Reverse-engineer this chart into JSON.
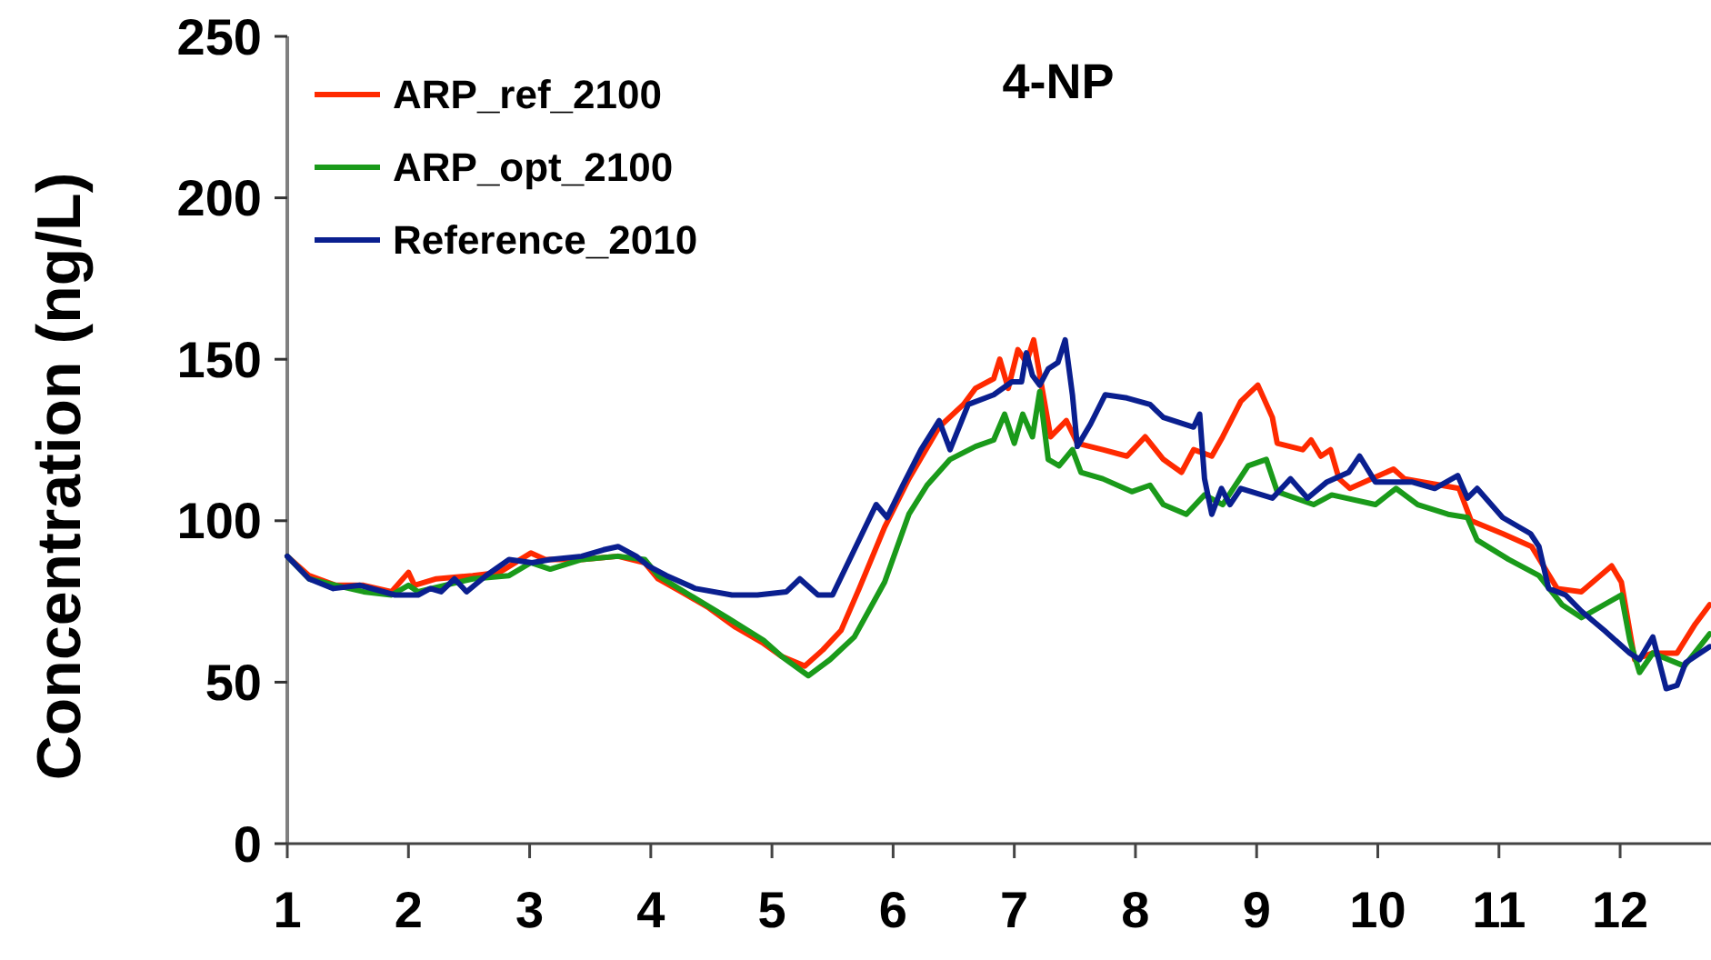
{
  "chart_data": {
    "type": "line",
    "title": "4-NP",
    "ylabel": "Concentration (ng/L)",
    "xlim": [
      1,
      12.75
    ],
    "ylim": [
      0,
      250
    ],
    "yticks": [
      0,
      50,
      100,
      150,
      200,
      250
    ],
    "xticks": [
      1,
      2,
      3,
      4,
      5,
      6,
      7,
      8,
      9,
      10,
      11,
      12
    ],
    "grid": false,
    "legend": "top left",
    "marker": "none",
    "line_style": "solid",
    "series": [
      {
        "name": "ARP_ref_2100",
        "color": "#ff2a00",
        "x": [
          1,
          1.18,
          1.4,
          1.63,
          1.86,
          2.0,
          2.05,
          2.23,
          2.53,
          2.75,
          3.01,
          3.13,
          3.43,
          3.73,
          3.95,
          4.06,
          4.25,
          4.48,
          4.7,
          4.93,
          5.08,
          5.27,
          5.42,
          5.57,
          5.72,
          5.93,
          6.13,
          6.38,
          6.58,
          6.68,
          6.83,
          6.88,
          6.95,
          7.03,
          7.1,
          7.16,
          7.22,
          7.3,
          7.43,
          7.52,
          7.73,
          7.93,
          8.08,
          8.23,
          8.38,
          8.48,
          8.63,
          8.72,
          8.87,
          9.01,
          9.13,
          9.17,
          9.38,
          9.45,
          9.53,
          9.61,
          9.68,
          9.77,
          10.13,
          10.22,
          10.67,
          10.77,
          11.03,
          11.27,
          11.48,
          11.68,
          11.93,
          12.01,
          12.12,
          12.27,
          12.47,
          12.62,
          12.74
        ],
        "values": [
          89,
          83,
          80,
          80,
          78,
          84,
          80,
          82,
          83,
          84,
          90,
          88,
          88,
          89,
          87,
          82,
          78,
          73,
          67,
          62,
          58,
          55,
          60,
          66,
          79,
          98,
          113,
          129,
          136,
          141,
          144,
          150,
          141,
          153,
          149,
          156,
          143,
          126,
          131,
          124,
          122,
          120,
          126,
          119,
          115,
          122,
          120,
          126,
          137,
          142,
          132,
          124,
          122,
          125,
          120,
          122,
          113,
          110,
          116,
          113,
          110,
          100,
          96,
          92,
          79,
          78,
          86,
          81,
          57,
          59,
          59,
          68,
          74
        ]
      },
      {
        "name": "ARP_opt_2100",
        "color": "#1a9a1a",
        "x": [
          1,
          1.18,
          1.4,
          1.63,
          1.86,
          2.0,
          2.08,
          2.3,
          2.53,
          2.83,
          3.01,
          3.17,
          3.43,
          3.73,
          3.95,
          4.06,
          4.32,
          4.63,
          4.93,
          5.08,
          5.3,
          5.48,
          5.68,
          5.93,
          6.13,
          6.28,
          6.47,
          6.68,
          6.83,
          6.92,
          7.0,
          7.07,
          7.15,
          7.21,
          7.28,
          7.37,
          7.48,
          7.55,
          7.73,
          7.97,
          8.12,
          8.23,
          8.42,
          8.57,
          8.72,
          8.93,
          9.08,
          9.17,
          9.47,
          9.62,
          9.98,
          10.15,
          10.33,
          10.58,
          10.74,
          10.82,
          11.08,
          11.33,
          11.52,
          11.68,
          12.01,
          12.08,
          12.16,
          12.27,
          12.53,
          12.74
        ],
        "values": [
          89,
          82,
          80,
          78,
          77,
          80,
          78,
          80,
          82,
          83,
          87,
          85,
          88,
          89,
          88,
          83,
          77,
          70,
          63,
          58,
          52,
          57,
          64,
          81,
          102,
          111,
          119,
          123,
          125,
          133,
          124,
          133,
          126,
          140,
          119,
          117,
          122,
          115,
          113,
          109,
          111,
          105,
          102,
          108,
          105,
          117,
          119,
          109,
          105,
          108,
          105,
          110,
          105,
          102,
          101,
          94,
          88,
          83,
          74,
          70,
          77,
          63,
          53,
          59,
          55,
          65
        ]
      },
      {
        "name": "Reference_2010",
        "color": "#0a1f8f",
        "x": [
          1,
          1.18,
          1.38,
          1.6,
          1.89,
          2.08,
          2.18,
          2.27,
          2.38,
          2.48,
          2.64,
          2.83,
          3.02,
          3.17,
          3.43,
          3.61,
          3.73,
          3.88,
          3.98,
          4.13,
          4.37,
          4.67,
          4.88,
          5.12,
          5.23,
          5.38,
          5.5,
          5.68,
          5.86,
          5.95,
          6.08,
          6.23,
          6.38,
          6.47,
          6.62,
          6.83,
          6.98,
          7.06,
          7.1,
          7.15,
          7.21,
          7.28,
          7.36,
          7.42,
          7.48,
          7.52,
          7.63,
          7.75,
          7.93,
          8.12,
          8.23,
          8.48,
          8.53,
          8.57,
          8.63,
          8.71,
          8.78,
          8.87,
          9.13,
          9.28,
          9.42,
          9.58,
          9.76,
          9.85,
          9.98,
          10.28,
          10.47,
          10.66,
          10.74,
          10.82,
          11.03,
          11.26,
          11.33,
          11.41,
          11.55,
          11.68,
          11.87,
          12.08,
          12.16,
          12.27,
          12.38,
          12.47,
          12.54,
          12.74
        ],
        "values": [
          89,
          82,
          79,
          80,
          77,
          77,
          79,
          78,
          82,
          78,
          83,
          88,
          87,
          88,
          89,
          91,
          92,
          89,
          86,
          83,
          79,
          77,
          77,
          78,
          82,
          77,
          77,
          91,
          105,
          101,
          111,
          122,
          131,
          122,
          136,
          139,
          143,
          143,
          152,
          145,
          142,
          147,
          149,
          156,
          139,
          123,
          130,
          139,
          138,
          136,
          132,
          129,
          133,
          113,
          102,
          110,
          105,
          110,
          107,
          113,
          107,
          112,
          115,
          120,
          112,
          112,
          110,
          114,
          107,
          110,
          101,
          96,
          92,
          79,
          77,
          72,
          66,
          59,
          57,
          64,
          48,
          49,
          56,
          61
        ]
      }
    ]
  }
}
